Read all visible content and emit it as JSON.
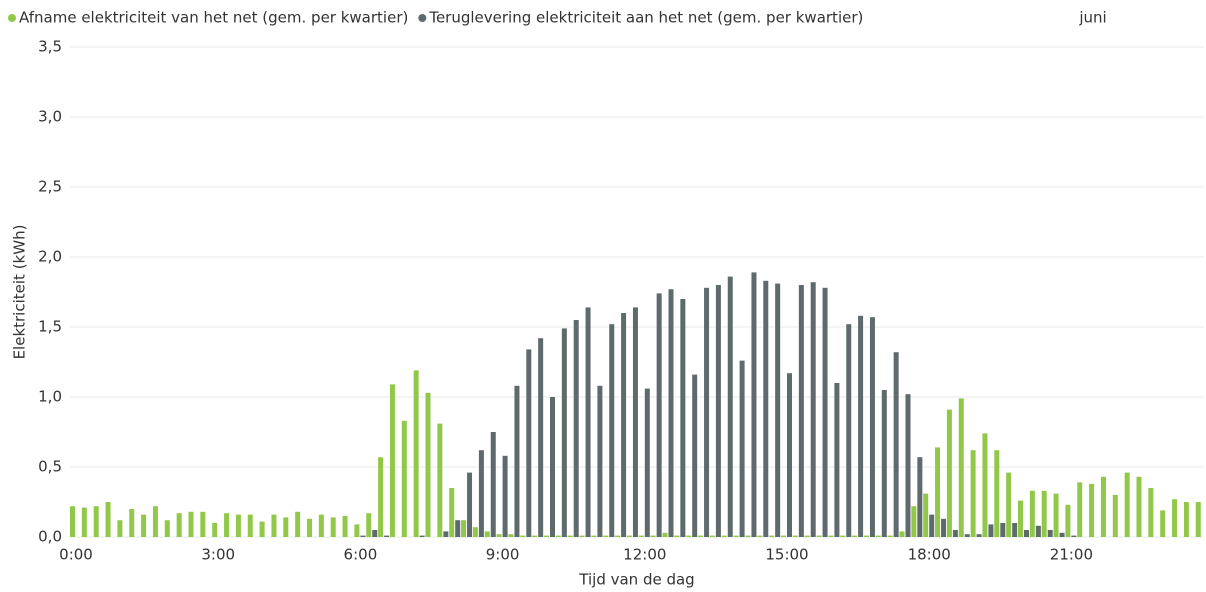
{
  "chart_data": {
    "type": "bar",
    "filter_label": "juni",
    "x_label": "Tijd van de dag",
    "y_label": "Elektriciteit (kWh)",
    "categories": [
      "0:00",
      null,
      null,
      null,
      null,
      null,
      null,
      null,
      null,
      null,
      null,
      null,
      "3:00",
      null,
      null,
      null,
      null,
      null,
      null,
      null,
      null,
      null,
      null,
      null,
      "6:00",
      null,
      null,
      null,
      null,
      null,
      null,
      null,
      null,
      null,
      null,
      null,
      "9:00",
      null,
      null,
      null,
      null,
      null,
      null,
      null,
      null,
      null,
      null,
      null,
      "12:00",
      null,
      null,
      null,
      null,
      null,
      null,
      null,
      null,
      null,
      null,
      null,
      "15:00",
      null,
      null,
      null,
      null,
      null,
      null,
      null,
      null,
      null,
      null,
      null,
      "18:00",
      null,
      null,
      null,
      null,
      null,
      null,
      null,
      null,
      null,
      null,
      null,
      "21:00",
      null,
      null,
      null,
      null,
      null,
      null,
      null,
      null,
      null,
      null,
      null
    ],
    "series": [
      {
        "name": "Afname elektriciteit van het net (gem. per kwartier)",
        "color": "#92c84a",
        "values": [
          0.22,
          0.21,
          0.22,
          0.25,
          0.12,
          0.2,
          0.16,
          0.22,
          0.12,
          0.17,
          0.18,
          0.18,
          0.1,
          0.17,
          0.16,
          0.16,
          0.11,
          0.16,
          0.14,
          0.18,
          0.13,
          0.16,
          0.14,
          0.15,
          0.09,
          0.17,
          0.57,
          1.09,
          0.83,
          1.19,
          1.03,
          0.81,
          0.35,
          0.12,
          0.07,
          0.04,
          0.02,
          0.02,
          0.01,
          0.01,
          0.01,
          0.01,
          0.01,
          0.01,
          0.01,
          0.01,
          0.01,
          0.01,
          0.01,
          0.01,
          0.03,
          0.01,
          0.01,
          0.01,
          0.01,
          0.01,
          0.01,
          0.01,
          0.01,
          0.01,
          0.01,
          0.01,
          0.01,
          0.01,
          0.01,
          0.01,
          0.01,
          0.01,
          0.01,
          0.01,
          0.04,
          0.22,
          0.31,
          0.64,
          0.91,
          0.99,
          0.62,
          0.74,
          0.62,
          0.46,
          0.26,
          0.33,
          0.33,
          0.31,
          0.23,
          0.39,
          0.38,
          0.43,
          0.3,
          0.46,
          0.43,
          0.35,
          0.19,
          0.27,
          0.25,
          0.25
        ]
      },
      {
        "name": "Teruglevering elektriciteit aan het net (gem. per kwartier)",
        "color": "#5f6a6c",
        "values": [
          0,
          0,
          0,
          0,
          0,
          0,
          0,
          0,
          0,
          0,
          0,
          0,
          0,
          0,
          0,
          0,
          0,
          0,
          0,
          0,
          0,
          0,
          0,
          0,
          0.01,
          0.05,
          0.01,
          0,
          0,
          0.01,
          0,
          0.04,
          0.12,
          0.46,
          0.62,
          0.75,
          0.58,
          1.08,
          1.34,
          1.42,
          1.0,
          1.49,
          1.55,
          1.64,
          1.08,
          1.52,
          1.6,
          1.64,
          1.06,
          1.74,
          1.77,
          1.7,
          1.16,
          1.78,
          1.8,
          1.86,
          1.26,
          1.89,
          1.83,
          1.81,
          1.17,
          1.8,
          1.82,
          1.78,
          1.1,
          1.52,
          1.58,
          1.57,
          1.05,
          1.32,
          1.02,
          0.57,
          0.16,
          0.13,
          0.05,
          0.02,
          0.02,
          0.09,
          0.1,
          0.1,
          0.05,
          0.08,
          0.05,
          0.03,
          0.01,
          0,
          0,
          0,
          0,
          0,
          0,
          0,
          0,
          0,
          0,
          0
        ]
      }
    ],
    "ylim": [
      0,
      3.5
    ],
    "yticks": [
      {
        "value": 0,
        "label": "0,0"
      },
      {
        "value": 0.5,
        "label": "0,5"
      },
      {
        "value": 1,
        "label": "1,0"
      },
      {
        "value": 1.5,
        "label": "1,5"
      },
      {
        "value": 2,
        "label": "2,0"
      },
      {
        "value": 2.5,
        "label": "2,5"
      },
      {
        "value": 3,
        "label": "3,0"
      },
      {
        "value": 3.5,
        "label": "3,5"
      }
    ],
    "grid": true
  }
}
